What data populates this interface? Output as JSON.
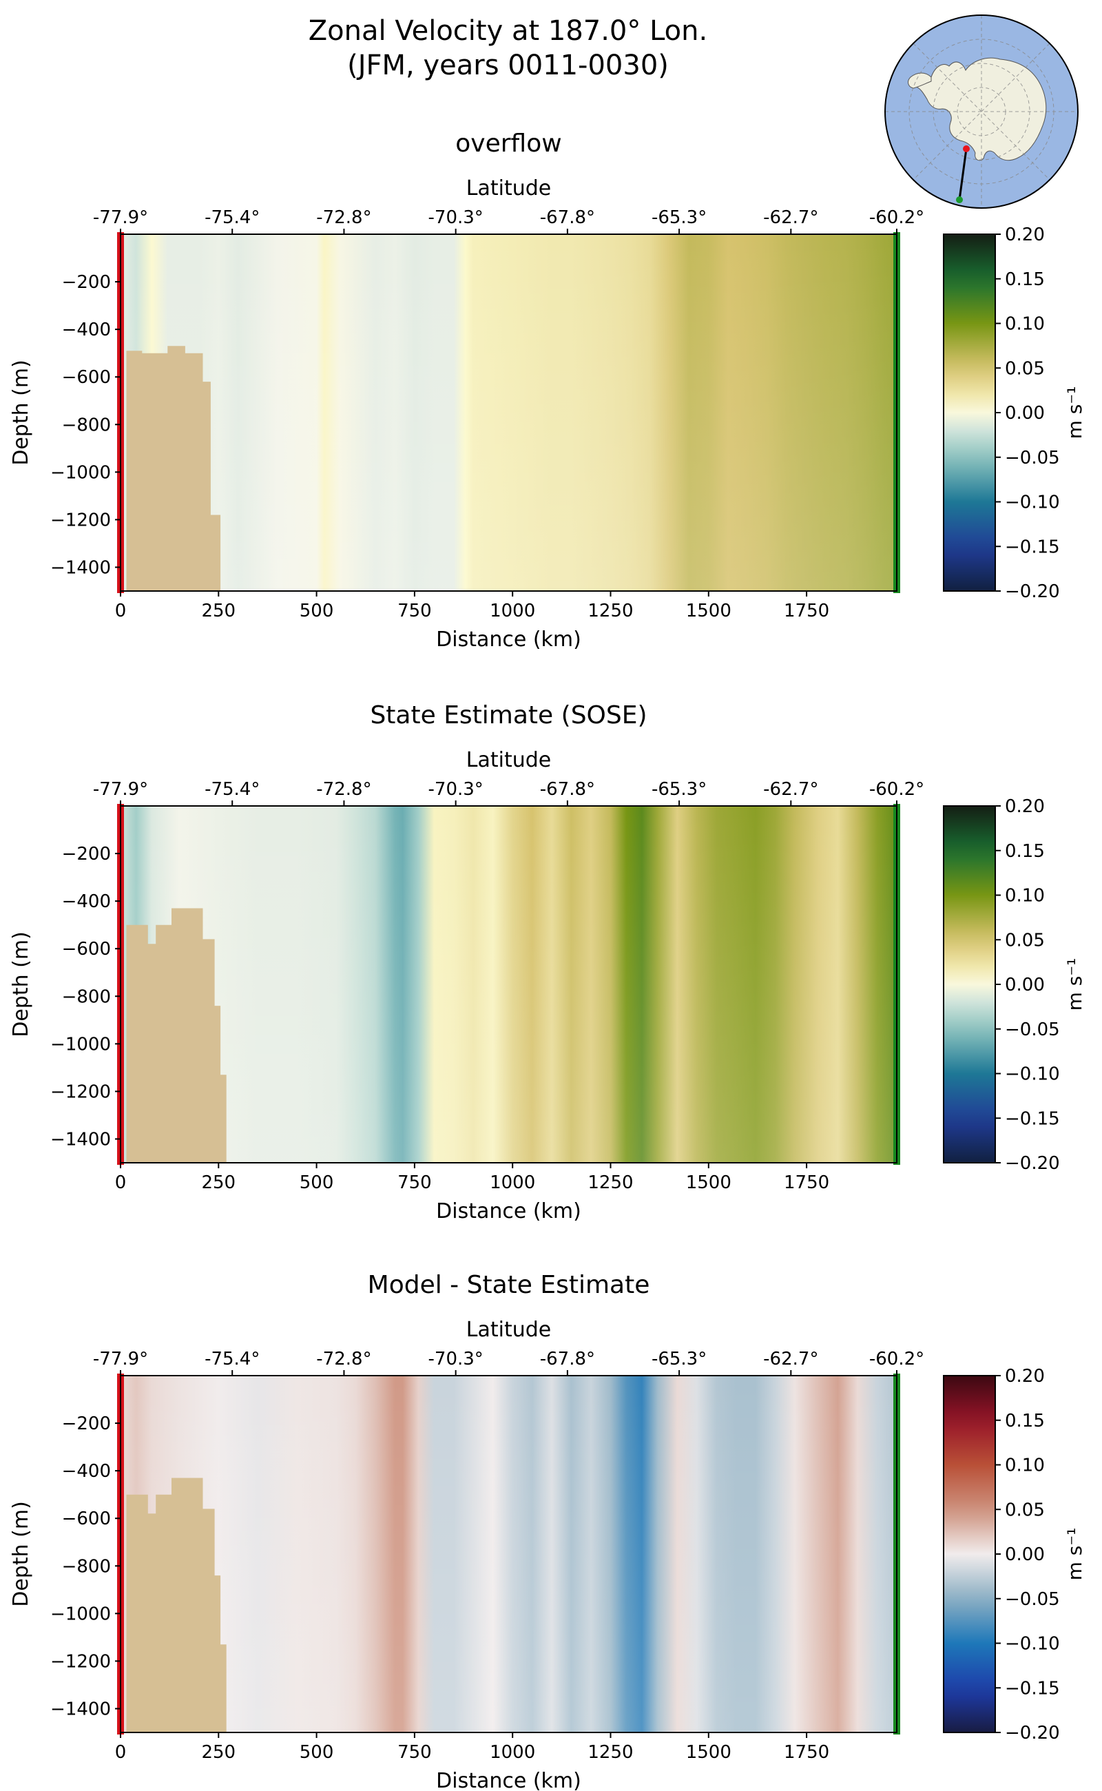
{
  "figure": {
    "title_line1": "Zonal Velocity at 187.0° Lon.",
    "title_line2": "(JFM, years 0011-0030)"
  },
  "inset_map": {
    "description_icon": "antarctica-polar-map-icon",
    "section_start_color": "#e8141c",
    "section_end_color": "#1a9a2e",
    "ocean_color": "#9ab7e3",
    "land_color": "#f0efdf"
  },
  "chart_data": [
    {
      "type": "heatmap",
      "title": "overflow",
      "xlabel": "Distance (km)",
      "ylabel": "Depth (m)",
      "top_axis_label": "Latitude",
      "top_ticks": [
        "-77.9°",
        "-75.4°",
        "-72.8°",
        "-70.3°",
        "-67.8°",
        "-65.3°",
        "-62.7°",
        "-60.2°"
      ],
      "top_tick_positions_km": [
        0,
        285,
        570,
        855,
        1140,
        1425,
        1710,
        1980
      ],
      "x_ticks": [
        0,
        250,
        500,
        750,
        1000,
        1250,
        1500,
        1750
      ],
      "y_ticks": [
        -200,
        -400,
        -600,
        -800,
        -1000,
        -1200,
        -1400
      ],
      "xlim": [
        0,
        1980
      ],
      "ylim": [
        -1500,
        0
      ],
      "colorbar_label": "m s⁻¹",
      "colorbar_ticks": [
        "0.20",
        "0.15",
        "0.10",
        "0.05",
        "0.00",
        "−0.05",
        "−0.10",
        "−0.15",
        "−0.20"
      ],
      "clim": [
        -0.2,
        0.2
      ],
      "colormap": "delta",
      "velocity_profile_km": [
        0,
        40,
        80,
        120,
        160,
        200,
        250,
        300,
        400,
        500,
        520,
        560,
        650,
        700,
        750,
        800,
        850,
        880,
        900,
        1000,
        1100,
        1150,
        1250,
        1300,
        1350,
        1400,
        1450,
        1500,
        1550,
        1600,
        1650,
        1700,
        1750,
        1800,
        1850,
        1900,
        1950,
        1980
      ],
      "velocity_profile_ms": [
        -0.01,
        -0.02,
        0.003,
        -0.01,
        -0.01,
        -0.01,
        -0.008,
        -0.012,
        -0.005,
        -0.003,
        0.008,
        -0.002,
        -0.01,
        -0.008,
        -0.012,
        -0.01,
        -0.01,
        0.005,
        0.012,
        0.015,
        0.018,
        0.018,
        0.022,
        0.025,
        0.03,
        0.045,
        0.06,
        0.058,
        0.05,
        0.052,
        0.055,
        0.06,
        0.063,
        0.066,
        0.068,
        0.072,
        0.078,
        0.08
      ],
      "bathymetry_km": [
        0,
        15,
        15,
        55,
        55,
        120,
        120,
        165,
        165,
        210,
        210,
        230,
        230,
        255,
        255
      ],
      "bathymetry_depth_m": [
        -1500,
        -1500,
        -490,
        -490,
        -500,
        -500,
        -470,
        -470,
        -500,
        -500,
        -620,
        -620,
        -1180,
        -1180,
        -1500
      ]
    },
    {
      "type": "heatmap",
      "title": "State Estimate (SOSE)",
      "xlabel": "Distance (km)",
      "ylabel": "Depth (m)",
      "top_axis_label": "Latitude",
      "top_ticks": [
        "-77.9°",
        "-75.4°",
        "-72.8°",
        "-70.3°",
        "-67.8°",
        "-65.3°",
        "-62.7°",
        "-60.2°"
      ],
      "top_tick_positions_km": [
        0,
        285,
        570,
        855,
        1140,
        1425,
        1710,
        1980
      ],
      "x_ticks": [
        0,
        250,
        500,
        750,
        1000,
        1250,
        1500,
        1750
      ],
      "y_ticks": [
        -200,
        -400,
        -600,
        -800,
        -1000,
        -1200,
        -1400
      ],
      "xlim": [
        0,
        1980
      ],
      "ylim": [
        -1500,
        0
      ],
      "colorbar_label": "m s⁻¹",
      "colorbar_ticks": [
        "0.20",
        "0.15",
        "0.10",
        "0.05",
        "0.00",
        "−0.05",
        "−0.10",
        "−0.15",
        "−0.20"
      ],
      "clim": [
        -0.2,
        0.2
      ],
      "colormap": "delta",
      "velocity_profile_km": [
        0,
        40,
        80,
        150,
        250,
        350,
        450,
        550,
        600,
        650,
        700,
        720,
        760,
        800,
        850,
        900,
        950,
        1000,
        1050,
        1100,
        1150,
        1200,
        1250,
        1290,
        1330,
        1370,
        1420,
        1470,
        1520,
        1570,
        1620,
        1670,
        1720,
        1780,
        1830,
        1880,
        1930,
        1980
      ],
      "velocity_profile_ms": [
        -0.02,
        -0.04,
        -0.015,
        -0.005,
        -0.008,
        -0.01,
        -0.01,
        -0.012,
        -0.02,
        -0.03,
        -0.06,
        -0.065,
        -0.04,
        0.01,
        0.012,
        0.02,
        0.01,
        0.035,
        0.05,
        0.03,
        0.055,
        0.04,
        0.06,
        0.1,
        0.115,
        0.08,
        0.04,
        0.065,
        0.08,
        0.085,
        0.09,
        0.08,
        0.06,
        0.04,
        0.03,
        0.06,
        0.09,
        0.11
      ],
      "bathymetry_km": [
        0,
        15,
        15,
        40,
        40,
        70,
        70,
        90,
        90,
        130,
        130,
        210,
        210,
        240,
        240,
        255,
        255,
        270,
        270
      ],
      "bathymetry_depth_m": [
        -1500,
        -1500,
        -500,
        -500,
        -500,
        -500,
        -580,
        -580,
        -500,
        -500,
        -430,
        -430,
        -560,
        -560,
        -840,
        -840,
        -1130,
        -1130,
        -1500
      ]
    },
    {
      "type": "heatmap",
      "title": "Model - State Estimate",
      "xlabel": "Distance (km)",
      "ylabel": "Depth (m)",
      "top_axis_label": "Latitude",
      "top_ticks": [
        "-77.9°",
        "-75.4°",
        "-72.8°",
        "-70.3°",
        "-67.8°",
        "-65.3°",
        "-62.7°",
        "-60.2°"
      ],
      "top_tick_positions_km": [
        0,
        285,
        570,
        855,
        1140,
        1425,
        1710,
        1980
      ],
      "x_ticks": [
        0,
        250,
        500,
        750,
        1000,
        1250,
        1500,
        1750
      ],
      "y_ticks": [
        -200,
        -400,
        -600,
        -800,
        -1000,
        -1200,
        -1400
      ],
      "xlim": [
        0,
        1980
      ],
      "ylim": [
        -1500,
        0
      ],
      "colorbar_label": "m s⁻¹",
      "colorbar_ticks": [
        "0.20",
        "0.15",
        "0.10",
        "0.05",
        "0.00",
        "−0.05",
        "−0.10",
        "−0.15",
        "−0.20"
      ],
      "clim": [
        -0.2,
        0.2
      ],
      "colormap": "balance",
      "velocity_profile_km": [
        0,
        40,
        80,
        150,
        250,
        350,
        450,
        550,
        600,
        650,
        700,
        720,
        760,
        800,
        850,
        900,
        950,
        1000,
        1050,
        1100,
        1150,
        1200,
        1250,
        1290,
        1330,
        1370,
        1420,
        1470,
        1520,
        1570,
        1620,
        1670,
        1720,
        1780,
        1830,
        1880,
        1930,
        1980
      ],
      "velocity_profile_ms": [
        0.01,
        0.02,
        0.01,
        0.005,
        0.0,
        -0.005,
        0.003,
        0.005,
        0.01,
        0.025,
        0.045,
        0.045,
        0.015,
        -0.02,
        -0.02,
        -0.01,
        0.0,
        -0.02,
        -0.03,
        -0.01,
        -0.035,
        -0.02,
        -0.04,
        -0.075,
        -0.09,
        -0.04,
        0.01,
        -0.01,
        -0.03,
        -0.035,
        -0.035,
        -0.02,
        0.005,
        0.025,
        0.04,
        0.01,
        -0.02,
        -0.03
      ],
      "bathymetry_km": [
        0,
        15,
        15,
        40,
        40,
        70,
        70,
        90,
        90,
        130,
        130,
        210,
        210,
        240,
        240,
        255,
        255,
        270,
        270
      ],
      "bathymetry_depth_m": [
        -1500,
        -1500,
        -500,
        -500,
        -500,
        -500,
        -580,
        -580,
        -500,
        -500,
        -430,
        -430,
        -560,
        -560,
        -840,
        -840,
        -1130,
        -1130,
        -1500
      ]
    }
  ]
}
